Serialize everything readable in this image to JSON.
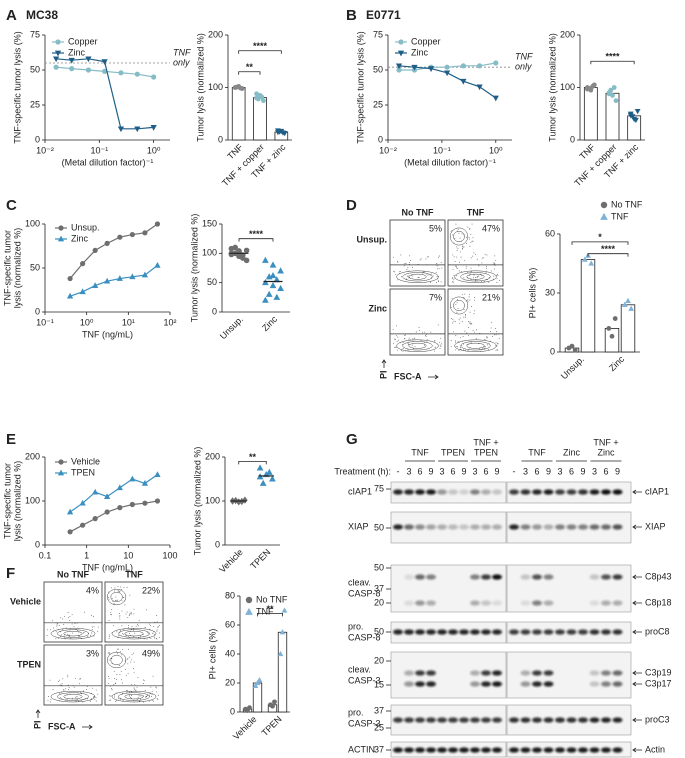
{
  "panel_labels": [
    "A",
    "B",
    "C",
    "D",
    "E",
    "F",
    "G"
  ],
  "panel_titles": [
    "MC38",
    "E0771"
  ],
  "chart_data": [
    {
      "type": "line",
      "x": [
        0.016,
        0.031,
        0.063,
        0.125,
        0.25,
        0.5,
        1
      ],
      "xlog": true,
      "xlim": [
        0.01,
        2
      ],
      "xticks": [
        {
          "value": 0.01,
          "label": "10⁻²"
        },
        {
          "value": 0.1,
          "label": "10⁻¹"
        },
        {
          "value": 1,
          "label": "10⁰"
        }
      ],
      "ylim": [
        0,
        75
      ],
      "yticks": [
        0,
        25,
        50,
        75
      ],
      "y_label": [
        "TNF-specific tumor lysis (%)"
      ],
      "x_label": "(Metal dilution factor)⁻¹",
      "reference": {
        "label": [
          "TNF",
          "only"
        ],
        "value": 55
      },
      "series": [
        {
          "name": "Copper",
          "color": "#86bcc6",
          "marker": "circle",
          "values": [
            52,
            51,
            50,
            49,
            48,
            47,
            45
          ]
        },
        {
          "name": "Zinc",
          "color": "#1f5e87",
          "marker": "triangle-down",
          "values": [
            58,
            57,
            58,
            56,
            8,
            8,
            9
          ]
        }
      ]
    },
    {
      "type": "bar",
      "categories": [
        "TNF",
        "TNF + copper",
        "TNF + zinc"
      ],
      "colors": [
        "#888888",
        "#86bcc6",
        "#1f5e87"
      ],
      "markers": [
        "circle",
        "circle",
        "triangle-down"
      ],
      "values": [
        100,
        81,
        15
      ],
      "points": [
        [
          100,
          102,
          98,
          101,
          99,
          100
        ],
        [
          80,
          85,
          75,
          78,
          82,
          88
        ],
        [
          15,
          17,
          13,
          16,
          14,
          18
        ]
      ],
      "ylim": [
        0,
        200
      ],
      "yticks": [
        0,
        100,
        200
      ],
      "y_label": [
        "Tumor lysis (normalized %)"
      ],
      "significance": [
        "**",
        "****"
      ]
    },
    {
      "type": "line",
      "x": [
        0.016,
        0.031,
        0.063,
        0.125,
        0.25,
        0.5,
        1
      ],
      "xlog": true,
      "xlim": [
        0.01,
        2
      ],
      "xticks": [
        {
          "value": 0.01,
          "label": "10⁻²"
        },
        {
          "value": 0.1,
          "label": "10⁻¹"
        },
        {
          "value": 1,
          "label": "10⁰"
        }
      ],
      "ylim": [
        0,
        75
      ],
      "yticks": [
        0,
        25,
        50,
        75
      ],
      "y_label": [
        "TNF-specific tumor lysis (%)"
      ],
      "x_label": "(Metal dilution factor)⁻¹",
      "reference": {
        "label": [
          "TNF",
          "only"
        ],
        "value": 52
      },
      "series": [
        {
          "name": "Copper",
          "color": "#86bcc6",
          "marker": "circle",
          "values": [
            50,
            50,
            52,
            52,
            53,
            53,
            55
          ]
        },
        {
          "name": "Zinc",
          "color": "#1f5e87",
          "marker": "triangle-down",
          "values": [
            53,
            52,
            51,
            48,
            42,
            38,
            30
          ]
        }
      ]
    },
    {
      "type": "bar",
      "categories": [
        "TNF",
        "TNF + copper",
        "TNF + zinc"
      ],
      "colors": [
        "#888888",
        "#86bcc6",
        "#1f5e87"
      ],
      "markers": [
        "circle",
        "circle",
        "triangle-down"
      ],
      "values": [
        100,
        89,
        46
      ],
      "points": [
        [
          100,
          95,
          105,
          98,
          102,
          97
        ],
        [
          90,
          85,
          75,
          95,
          100,
          88
        ],
        [
          47,
          40,
          55,
          45,
          38,
          50
        ]
      ],
      "ylim": [
        0,
        200
      ],
      "yticks": [
        0,
        100,
        200
      ],
      "y_label": [
        "Tumor lysis (normalized %)"
      ],
      "significance": [
        "****"
      ]
    },
    {
      "type": "line",
      "x": [
        0.4,
        0.8,
        1.6,
        3.1,
        6.25,
        12.5,
        25,
        50
      ],
      "xlog": true,
      "xlim": [
        0.1,
        100
      ],
      "xticks": [
        {
          "value": 0.1,
          "label": "10⁻¹"
        },
        {
          "value": 1,
          "label": "10⁰"
        },
        {
          "value": 10,
          "label": "10¹"
        },
        {
          "value": 100,
          "label": "10²"
        }
      ],
      "ylim": [
        0,
        100
      ],
      "yticks": [
        0,
        50,
        100
      ],
      "y_label": [
        "TNF-specific tumor",
        "lysis (normalized %)"
      ],
      "x_label": "TNF (ng/mL)",
      "series": [
        {
          "name": "Unsup.",
          "color": "#6e6e6e",
          "marker": "circle",
          "values": [
            38,
            55,
            70,
            78,
            85,
            88,
            90,
            100
          ]
        },
        {
          "name": "Zinc",
          "color": "#3b8fc0",
          "marker": "triangle",
          "values": [
            18,
            23,
            30,
            35,
            38,
            40,
            42,
            53
          ]
        }
      ]
    },
    {
      "type": "dot",
      "categories": [
        "Unsup.",
        "Zinc"
      ],
      "colors": [
        "#6e6e6e",
        "#3b8fc0"
      ],
      "markers": [
        "circle",
        "triangle"
      ],
      "values": [
        100,
        52
      ],
      "points": [
        [
          100,
          95,
          105,
          110,
          92,
          98,
          103,
          88,
          100,
          97,
          108,
          104
        ],
        [
          88,
          80,
          70,
          60,
          55,
          50,
          45,
          40,
          30,
          25,
          20,
          62
        ]
      ],
      "ylim": [
        0,
        150
      ],
      "yticks": [
        0,
        50,
        100,
        150
      ],
      "y_label": [
        "Tumor lysis (normalized %)"
      ],
      "significance": [
        "****"
      ]
    },
    {
      "type": "bar",
      "categories": [
        "Unsup.",
        "Zinc"
      ],
      "series": [
        {
          "name": "No TNF",
          "color": "#6e6e6e",
          "marker": "circle",
          "values": [
            2,
            12
          ],
          "points": [
            [
              2,
              3,
              1
            ],
            [
              12,
              8,
              17
            ]
          ]
        },
        {
          "name": "TNF",
          "color": "#7fb2d6",
          "marker": "triangle",
          "values": [
            47,
            24
          ],
          "points": [
            [
              47,
              49,
              45
            ],
            [
              24,
              26,
              22
            ]
          ]
        }
      ],
      "ylim": [
        0,
        60
      ],
      "yticks": [
        0,
        30,
        60
      ],
      "y_label": [
        "PI+ cells (%)"
      ],
      "significance": [
        "*",
        "****"
      ]
    },
    {
      "type": "line",
      "x": [
        0.4,
        0.8,
        1.6,
        3.1,
        6.25,
        12.5,
        25,
        50
      ],
      "xlog": true,
      "xlim": [
        0.1,
        100
      ],
      "xticks": [
        0.1,
        1,
        10,
        100
      ],
      "ylim": [
        0,
        200
      ],
      "yticks": [
        0,
        100,
        200
      ],
      "y_label": [
        "TNF-specific tumor",
        "lysis (normalized %)"
      ],
      "x_label": "TNF (ng/mL)",
      "series": [
        {
          "name": "Vehicle",
          "color": "#6e6e6e",
          "marker": "circle",
          "values": [
            30,
            45,
            60,
            75,
            85,
            92,
            95,
            100
          ]
        },
        {
          "name": "TPEN",
          "color": "#3b8fc0",
          "marker": "triangle",
          "values": [
            75,
            95,
            120,
            110,
            130,
            150,
            140,
            160
          ]
        }
      ]
    },
    {
      "type": "dot",
      "categories": [
        "Vehicle",
        "TPEN"
      ],
      "colors": [
        "#6e6e6e",
        "#3b8fc0"
      ],
      "markers": [
        "diamond",
        "triangle"
      ],
      "values": [
        100,
        157
      ],
      "points": [
        [
          100,
          98,
          102,
          101,
          99,
          100
        ],
        [
          175,
          160,
          150,
          140,
          165,
          155
        ]
      ],
      "ylim": [
        0,
        200
      ],
      "yticks": [
        0,
        100,
        200
      ],
      "y_label": [
        "Tumor lysis (normalized %)"
      ],
      "significance": [
        "**"
      ]
    },
    {
      "type": "bar",
      "categories": [
        "Vehicle",
        "TPEN"
      ],
      "series": [
        {
          "name": "No TNF",
          "color": "#6e6e6e",
          "marker": "circle",
          "values": [
            2,
            5
          ],
          "points": [
            [
              2,
              1,
              3
            ],
            [
              5,
              4,
              7
            ]
          ]
        },
        {
          "name": "TNF",
          "color": "#7fb2d6",
          "marker": "triangle",
          "values": [
            20,
            55
          ],
          "points": [
            [
              18,
              20,
              22
            ],
            [
              40,
              55,
              70
            ]
          ]
        }
      ],
      "ylim": [
        0,
        80
      ],
      "yticks": [
        0,
        20,
        40,
        60,
        80
      ],
      "y_label": [
        "PI+ cells (%)"
      ],
      "significance": [
        "**"
      ]
    }
  ],
  "flow": [
    {
      "col_headers": [
        "No TNF",
        "TNF"
      ],
      "row_labels": [
        "Unsup.",
        "Zinc"
      ],
      "percents": [
        "5%",
        "47%",
        "7%",
        "21%"
      ],
      "y_label": "PI",
      "x_label": "FSC-A"
    },
    {
      "col_headers": [
        "No TNF",
        "TNF"
      ],
      "row_labels": [
        "Vehicle",
        "TPEN"
      ],
      "percents": [
        "4%",
        "22%",
        "3%",
        "49%"
      ],
      "y_label": "PI",
      "x_label": "FSC-A"
    }
  ],
  "blot": {
    "groups": [
      [
        "TNF"
      ],
      [
        "TPEN"
      ],
      [
        "TNF +",
        "TPEN"
      ],
      [
        "TNF"
      ],
      [
        "Zinc"
      ],
      [
        "TNF +",
        "Zinc"
      ]
    ],
    "treatment_label": "Treatment (h):",
    "lanes": [
      "-",
      "3",
      "6",
      "9",
      "3",
      "6",
      "9",
      "3",
      "6",
      "9",
      "-",
      "3",
      "6",
      "9",
      "3",
      "6",
      "9",
      "3",
      "6",
      "9"
    ],
    "rows": [
      {
        "label": [
          "cIAP1"
        ],
        "mw": [
          75
        ],
        "bands": [
          "cIAP1"
        ]
      },
      {
        "label": [
          "XIAP"
        ],
        "mw": [
          50
        ],
        "bands": [
          "XIAP"
        ]
      },
      {
        "label": [
          "cleav.",
          "CASP-8"
        ],
        "mw": [
          50,
          37,
          20
        ],
        "bands": [
          "C8p43",
          "C8p18"
        ]
      },
      {
        "label": [
          "pro.",
          "CASP-8"
        ],
        "mw": [
          50
        ],
        "bands": [
          "proC8"
        ]
      },
      {
        "label": [
          "cleav.",
          "CASP-3"
        ],
        "mw": [
          20,
          15
        ],
        "bands": [
          "C3p19",
          "C3p17"
        ]
      },
      {
        "label": [
          "pro.",
          "CASP-3"
        ],
        "mw": [
          37,
          25
        ],
        "bands": [
          "proC3"
        ]
      },
      {
        "label": [
          "ACTIN"
        ],
        "mw": [
          37
        ],
        "bands": [
          "Actin"
        ]
      }
    ]
  }
}
